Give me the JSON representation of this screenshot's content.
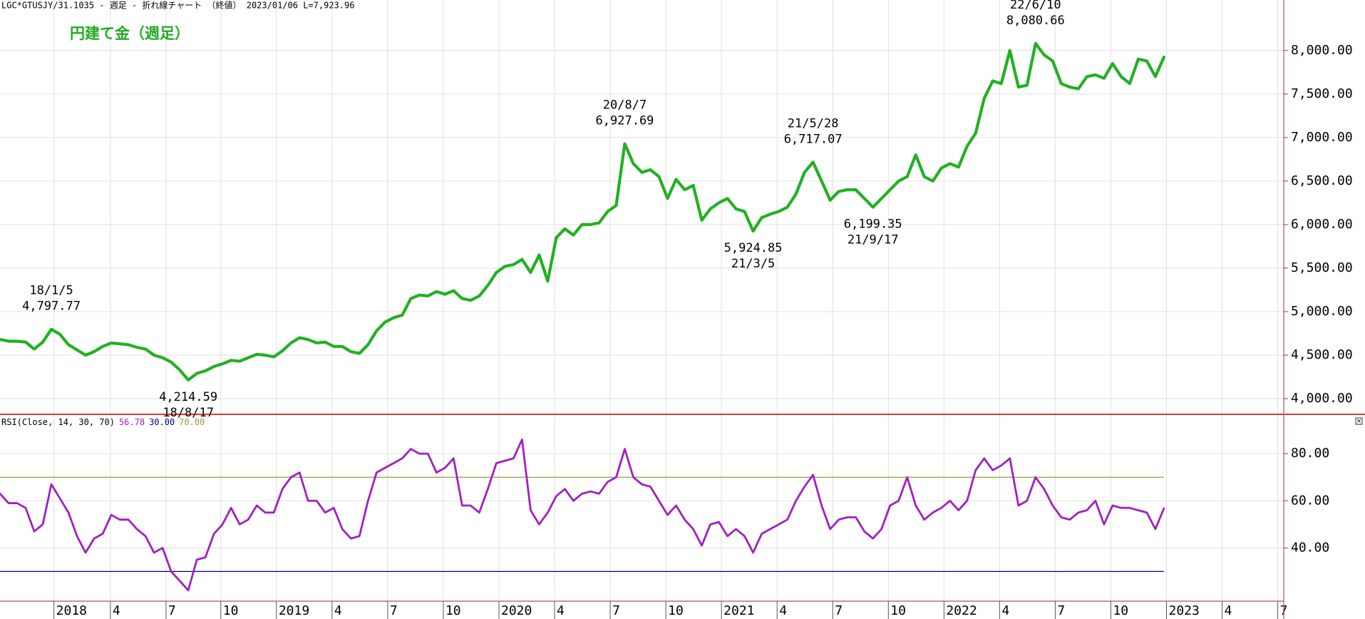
{
  "chart_data": [
    {
      "type": "line",
      "header": "LGC*GTUSJY/31.1035 - 週足 - 折れ線チャート （終値） 2023/01/06 L=7,923.96",
      "title": "円建て金（週足）",
      "title_color": "#22aa22",
      "color": "#22b022",
      "grid": true,
      "xlim": [
        0,
        150
      ],
      "ylim": [
        3820,
        8580
      ],
      "yticks": [
        {
          "value": 4000,
          "label": "4,000.00"
        },
        {
          "value": 4500,
          "label": "4,500.00"
        },
        {
          "value": 5000,
          "label": "5,000.00"
        },
        {
          "value": 5500,
          "label": "5,500.00"
        },
        {
          "value": 6000,
          "label": "6,000.00"
        },
        {
          "value": 6500,
          "label": "6,500.00"
        },
        {
          "value": 7000,
          "label": "7,000.00"
        },
        {
          "value": 7500,
          "label": "7,500.00"
        },
        {
          "value": 8000,
          "label": "8,000.00"
        }
      ],
      "categories": [
        null,
        null,
        null,
        null,
        null,
        null,
        null,
        null,
        null,
        null,
        null,
        null,
        null,
        null,
        null,
        null,
        null,
        null,
        null,
        null,
        null,
        null,
        null,
        null,
        null,
        null,
        null,
        null,
        null,
        null,
        null,
        null,
        null,
        null,
        null,
        null,
        null,
        null,
        null,
        null,
        null,
        null,
        null,
        null,
        null,
        null,
        null,
        null,
        null,
        null,
        null,
        null,
        null,
        null,
        null,
        null,
        null,
        null,
        null,
        null,
        null,
        null,
        null,
        null,
        null,
        null,
        null,
        null,
        null,
        null,
        null,
        null,
        null,
        null,
        null,
        null,
        null,
        null,
        null,
        null,
        null,
        null,
        null,
        null,
        null,
        null,
        null,
        null,
        null,
        null,
        null,
        null,
        null,
        null,
        null,
        null,
        null,
        null,
        null,
        null,
        null,
        null,
        null,
        null,
        null,
        null,
        null,
        null,
        null,
        null,
        null,
        null,
        null,
        null,
        null,
        null,
        null,
        null,
        null,
        null,
        null,
        null,
        null,
        null,
        null,
        null,
        null,
        null,
        null,
        null,
        null,
        null,
        null,
        null,
        null,
        null,
        null
      ],
      "values": [
        4680,
        4660,
        4660,
        4650,
        4570,
        4650,
        4797.77,
        4740,
        4620,
        4560,
        4500,
        4540,
        4600,
        4640,
        4630,
        4620,
        4590,
        4570,
        4500,
        4470,
        4420,
        4330,
        4214.59,
        4290,
        4320,
        4370,
        4400,
        4440,
        4430,
        4470,
        4510,
        4500,
        4480,
        4550,
        4640,
        4700,
        4680,
        4640,
        4650,
        4600,
        4600,
        4540,
        4520,
        4620,
        4780,
        4880,
        4930,
        4960,
        5150,
        5190,
        5180,
        5230,
        5200,
        5240,
        5150,
        5130,
        5180,
        5300,
        5450,
        5520,
        5540,
        5600,
        5450,
        5650,
        5350,
        5850,
        5950,
        5880,
        6000,
        6000,
        6020,
        6150,
        6220,
        6927.69,
        6700,
        6600,
        6630,
        6550,
        6300,
        6520,
        6400,
        6450,
        6050,
        6180,
        6250,
        6300,
        6180,
        6150,
        5924.85,
        6080,
        6120,
        6150,
        6200,
        6350,
        6600,
        6717.07,
        6500,
        6280,
        6380,
        6400,
        6400,
        6300,
        6199.35,
        6300,
        6400,
        6500,
        6550,
        6800,
        6550,
        6500,
        6650,
        6700,
        6660,
        6900,
        7050,
        7450,
        7650,
        7620,
        8000,
        7580,
        7600,
        8080.66,
        7950,
        7880,
        7620,
        7580,
        7560,
        7700,
        7720,
        7680,
        7850,
        7700,
        7620,
        7900,
        7880,
        7700,
        7923.96
      ],
      "annotations": [
        {
          "date": "18/1/5",
          "value": 4797.77,
          "label": "4,797.77",
          "position": "above"
        },
        {
          "date": "18/8/17",
          "value": 4214.59,
          "label": "4,214.59",
          "position": "below"
        },
        {
          "date": "20/8/7",
          "value": 6927.69,
          "label": "6,927.69",
          "position": "above"
        },
        {
          "date": "21/3/5",
          "value": 5924.85,
          "label": "5,924.85",
          "position": "below"
        },
        {
          "date": "21/5/28",
          "value": 6717.07,
          "label": "6,717.07",
          "position": "above"
        },
        {
          "date": "21/9/17",
          "value": 6199.35,
          "label": "6,199.35",
          "position": "below"
        },
        {
          "date": "22/6/10",
          "value": 8080.66,
          "label": "8,080.66",
          "position": "above"
        }
      ]
    },
    {
      "type": "line",
      "label_parts": [
        {
          "text": "RSI(Close, 14, 30, 70)",
          "color": "#000000"
        },
        {
          "text": "56.78",
          "color": "#a020c0"
        },
        {
          "text": "30.00",
          "color": "#000080"
        },
        {
          "text": "70.00",
          "color": "#9a9a40"
        }
      ],
      "color": "#a020c0",
      "grid": true,
      "xlim": [
        0,
        150
      ],
      "ylim": [
        17.4,
        96.7
      ],
      "yticks": [
        {
          "value": 40,
          "label": "40.00"
        },
        {
          "value": 60,
          "label": "60.00"
        },
        {
          "value": 80,
          "label": "80.00"
        }
      ],
      "xticks": [
        {
          "value": 6.3,
          "label": "2018"
        },
        {
          "value": 12.9,
          "label": "4"
        },
        {
          "value": 19.4,
          "label": "7"
        },
        {
          "value": 25.8,
          "label": "10"
        },
        {
          "value": 32.3,
          "label": "2019"
        },
        {
          "value": 38.8,
          "label": "4"
        },
        {
          "value": 45.3,
          "label": "7"
        },
        {
          "value": 51.8,
          "label": "10"
        },
        {
          "value": 58.3,
          "label": "2020"
        },
        {
          "value": 64.8,
          "label": "4"
        },
        {
          "value": 71.3,
          "label": "7"
        },
        {
          "value": 77.8,
          "label": "10"
        },
        {
          "value": 84.3,
          "label": "2021"
        },
        {
          "value": 90.8,
          "label": "4"
        },
        {
          "value": 97.3,
          "label": "7"
        },
        {
          "value": 103.8,
          "label": "10"
        },
        {
          "value": 110.3,
          "label": "2022"
        },
        {
          "value": 116.8,
          "label": "4"
        },
        {
          "value": 123.3,
          "label": "7"
        },
        {
          "value": 129.8,
          "label": "10"
        },
        {
          "value": 136.3,
          "label": "2023"
        },
        {
          "value": 142.8,
          "label": "4"
        },
        {
          "value": 149.3,
          "label": "7"
        }
      ],
      "levels": [
        {
          "value": 30,
          "color": "#000080"
        },
        {
          "value": 70,
          "color": "#9a9a40"
        }
      ],
      "categories": [
        null,
        null,
        null,
        null,
        null,
        null,
        null,
        null,
        null,
        null,
        null,
        null,
        null,
        null,
        null,
        null,
        null,
        null,
        null,
        null,
        null,
        null,
        null,
        null,
        null,
        null,
        null,
        null,
        null,
        null,
        null,
        null,
        null,
        null,
        null,
        null,
        null,
        null,
        null,
        null,
        null,
        null,
        null,
        null,
        null,
        null,
        null,
        null,
        null,
        null,
        null,
        null,
        null,
        null,
        null,
        null,
        null,
        null,
        null,
        null,
        null,
        null,
        null,
        null,
        null,
        null,
        null,
        null,
        null,
        null,
        null,
        null,
        null,
        null,
        null,
        null,
        null,
        null,
        null,
        null,
        null,
        null,
        null,
        null,
        null,
        null,
        null,
        null,
        null,
        null,
        null,
        null,
        null,
        null,
        null,
        null,
        null,
        null,
        null,
        null,
        null,
        null,
        null,
        null,
        null,
        null,
        null,
        null,
        null,
        null,
        null,
        null,
        null,
        null,
        null,
        null,
        null,
        null,
        null,
        null,
        null,
        null,
        null,
        null,
        null,
        null,
        null,
        null,
        null,
        null,
        null,
        null,
        null,
        null,
        null,
        null,
        null
      ],
      "values": [
        63,
        59,
        59,
        57,
        47,
        50,
        67,
        61,
        55,
        45,
        38,
        44,
        46,
        54,
        52,
        52,
        48,
        45,
        38,
        40,
        30,
        26,
        22,
        35,
        36,
        46,
        50,
        57,
        50,
        52,
        58,
        55,
        55,
        65,
        70,
        72,
        60,
        60,
        55,
        57,
        48,
        44,
        45,
        60,
        72,
        74,
        76,
        78,
        82,
        80,
        80,
        72,
        74,
        78,
        58,
        58,
        55,
        65,
        76,
        77,
        78,
        86,
        56,
        50,
        55,
        62,
        65,
        60,
        63,
        64,
        63,
        68,
        70,
        82,
        70,
        67,
        66,
        60,
        54,
        58,
        52,
        48,
        41,
        50,
        51,
        45,
        48,
        45,
        38,
        46,
        48,
        50,
        52,
        60,
        66,
        71,
        58,
        48,
        52,
        53,
        53,
        47,
        44,
        48,
        58,
        60,
        70,
        58,
        52,
        55,
        57,
        60,
        56,
        60,
        73,
        78,
        73,
        75,
        78,
        58,
        60,
        70,
        65,
        58,
        53,
        52,
        55,
        56,
        60,
        50,
        58,
        57,
        57,
        56,
        55,
        48,
        56.78
      ]
    }
  ]
}
